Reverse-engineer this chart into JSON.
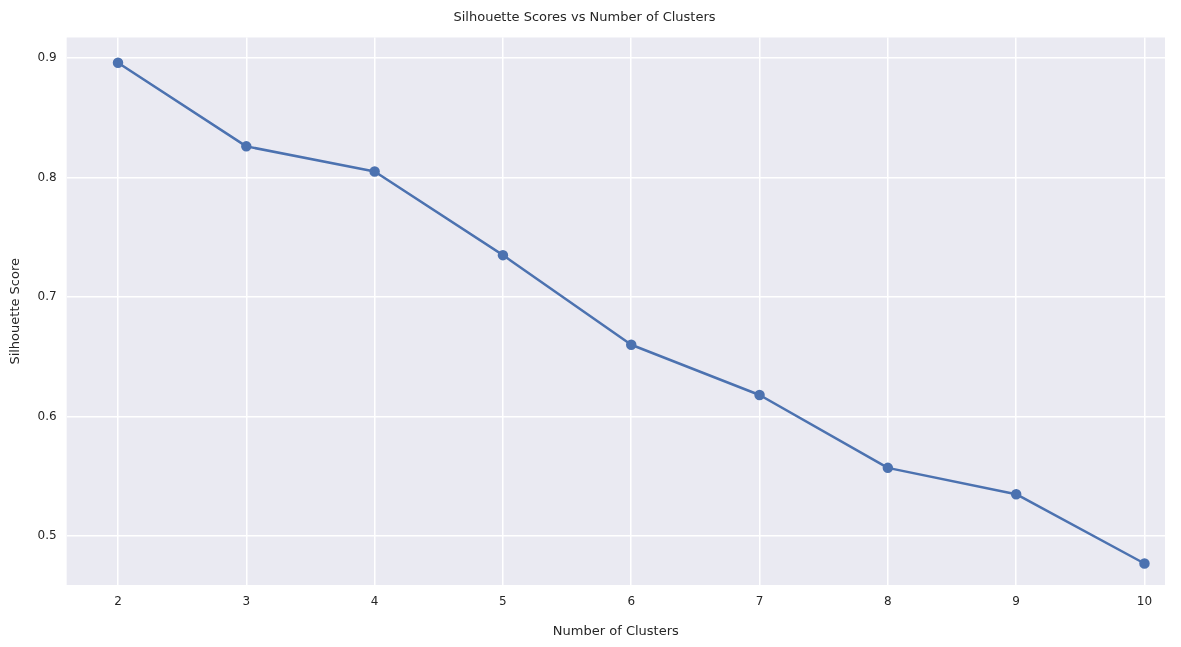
{
  "chart_data": {
    "type": "line",
    "title": "Silhouette Scores vs Number of Clusters",
    "xlabel": "Number of Clusters",
    "ylabel": "Silhouette Score",
    "x": [
      2,
      3,
      4,
      5,
      6,
      7,
      8,
      9,
      10
    ],
    "series": [
      {
        "color": "#4c72b0",
        "values": [
          0.896,
          0.826,
          0.805,
          0.735,
          0.66,
          0.618,
          0.557,
          0.535,
          0.477
        ]
      }
    ],
    "xlim": [
      1.6,
      10.16
    ],
    "xticks": [
      2,
      3,
      4,
      5,
      6,
      7,
      8,
      9,
      10
    ],
    "ylim": [
      0.459,
      0.917
    ],
    "yticks": [
      0.5,
      0.6,
      0.7,
      0.8,
      0.9
    ],
    "grid": true,
    "legend": false,
    "marker": "circle",
    "line_style": "solid"
  }
}
